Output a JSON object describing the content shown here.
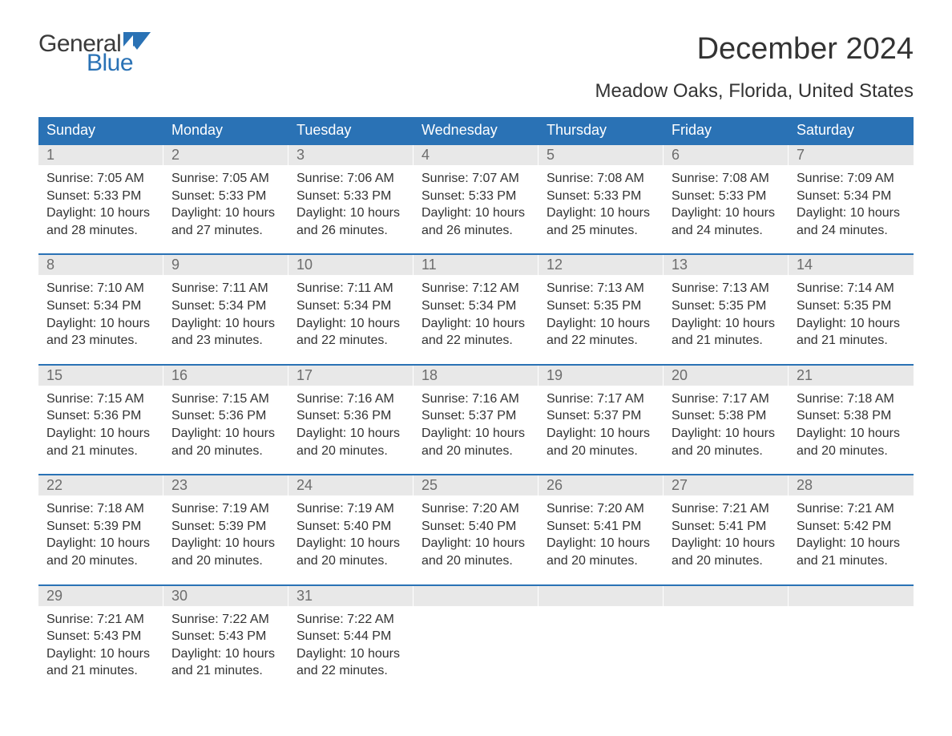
{
  "logo": {
    "general": "General",
    "blue": "Blue",
    "icon_color": "#2a72b5"
  },
  "title": "December 2024",
  "subtitle": "Meadow Oaks, Florida, United States",
  "colors": {
    "header_bg": "#2a72b5",
    "header_text": "#ffffff",
    "daynum_bg": "#e8e8e8",
    "daynum_text": "#6d6d6d",
    "body_text": "#333333",
    "week_border": "#2a72b5",
    "page_bg": "#ffffff"
  },
  "fontsize": {
    "title": 38,
    "subtitle": 24,
    "dow": 18,
    "daynum": 18,
    "body": 16
  },
  "days_of_week": [
    "Sunday",
    "Monday",
    "Tuesday",
    "Wednesday",
    "Thursday",
    "Friday",
    "Saturday"
  ],
  "weeks": [
    [
      {
        "n": "1",
        "sunrise": "7:05 AM",
        "sunset": "5:33 PM",
        "day_h": "10",
        "day_m": "28"
      },
      {
        "n": "2",
        "sunrise": "7:05 AM",
        "sunset": "5:33 PM",
        "day_h": "10",
        "day_m": "27"
      },
      {
        "n": "3",
        "sunrise": "7:06 AM",
        "sunset": "5:33 PM",
        "day_h": "10",
        "day_m": "26"
      },
      {
        "n": "4",
        "sunrise": "7:07 AM",
        "sunset": "5:33 PM",
        "day_h": "10",
        "day_m": "26"
      },
      {
        "n": "5",
        "sunrise": "7:08 AM",
        "sunset": "5:33 PM",
        "day_h": "10",
        "day_m": "25"
      },
      {
        "n": "6",
        "sunrise": "7:08 AM",
        "sunset": "5:33 PM",
        "day_h": "10",
        "day_m": "24"
      },
      {
        "n": "7",
        "sunrise": "7:09 AM",
        "sunset": "5:34 PM",
        "day_h": "10",
        "day_m": "24"
      }
    ],
    [
      {
        "n": "8",
        "sunrise": "7:10 AM",
        "sunset": "5:34 PM",
        "day_h": "10",
        "day_m": "23"
      },
      {
        "n": "9",
        "sunrise": "7:11 AM",
        "sunset": "5:34 PM",
        "day_h": "10",
        "day_m": "23"
      },
      {
        "n": "10",
        "sunrise": "7:11 AM",
        "sunset": "5:34 PM",
        "day_h": "10",
        "day_m": "22"
      },
      {
        "n": "11",
        "sunrise": "7:12 AM",
        "sunset": "5:34 PM",
        "day_h": "10",
        "day_m": "22"
      },
      {
        "n": "12",
        "sunrise": "7:13 AM",
        "sunset": "5:35 PM",
        "day_h": "10",
        "day_m": "22"
      },
      {
        "n": "13",
        "sunrise": "7:13 AM",
        "sunset": "5:35 PM",
        "day_h": "10",
        "day_m": "21"
      },
      {
        "n": "14",
        "sunrise": "7:14 AM",
        "sunset": "5:35 PM",
        "day_h": "10",
        "day_m": "21"
      }
    ],
    [
      {
        "n": "15",
        "sunrise": "7:15 AM",
        "sunset": "5:36 PM",
        "day_h": "10",
        "day_m": "21"
      },
      {
        "n": "16",
        "sunrise": "7:15 AM",
        "sunset": "5:36 PM",
        "day_h": "10",
        "day_m": "20"
      },
      {
        "n": "17",
        "sunrise": "7:16 AM",
        "sunset": "5:36 PM",
        "day_h": "10",
        "day_m": "20"
      },
      {
        "n": "18",
        "sunrise": "7:16 AM",
        "sunset": "5:37 PM",
        "day_h": "10",
        "day_m": "20"
      },
      {
        "n": "19",
        "sunrise": "7:17 AM",
        "sunset": "5:37 PM",
        "day_h": "10",
        "day_m": "20"
      },
      {
        "n": "20",
        "sunrise": "7:17 AM",
        "sunset": "5:38 PM",
        "day_h": "10",
        "day_m": "20"
      },
      {
        "n": "21",
        "sunrise": "7:18 AM",
        "sunset": "5:38 PM",
        "day_h": "10",
        "day_m": "20"
      }
    ],
    [
      {
        "n": "22",
        "sunrise": "7:18 AM",
        "sunset": "5:39 PM",
        "day_h": "10",
        "day_m": "20"
      },
      {
        "n": "23",
        "sunrise": "7:19 AM",
        "sunset": "5:39 PM",
        "day_h": "10",
        "day_m": "20"
      },
      {
        "n": "24",
        "sunrise": "7:19 AM",
        "sunset": "5:40 PM",
        "day_h": "10",
        "day_m": "20"
      },
      {
        "n": "25",
        "sunrise": "7:20 AM",
        "sunset": "5:40 PM",
        "day_h": "10",
        "day_m": "20"
      },
      {
        "n": "26",
        "sunrise": "7:20 AM",
        "sunset": "5:41 PM",
        "day_h": "10",
        "day_m": "20"
      },
      {
        "n": "27",
        "sunrise": "7:21 AM",
        "sunset": "5:41 PM",
        "day_h": "10",
        "day_m": "20"
      },
      {
        "n": "28",
        "sunrise": "7:21 AM",
        "sunset": "5:42 PM",
        "day_h": "10",
        "day_m": "21"
      }
    ],
    [
      {
        "n": "29",
        "sunrise": "7:21 AM",
        "sunset": "5:43 PM",
        "day_h": "10",
        "day_m": "21"
      },
      {
        "n": "30",
        "sunrise": "7:22 AM",
        "sunset": "5:43 PM",
        "day_h": "10",
        "day_m": "21"
      },
      {
        "n": "31",
        "sunrise": "7:22 AM",
        "sunset": "5:44 PM",
        "day_h": "10",
        "day_m": "22"
      },
      null,
      null,
      null,
      null
    ]
  ],
  "labels": {
    "sunrise": "Sunrise: ",
    "sunset": "Sunset: ",
    "daylight_1": "Daylight: ",
    "daylight_hours": " hours",
    "daylight_and": "and ",
    "daylight_min": " minutes."
  }
}
